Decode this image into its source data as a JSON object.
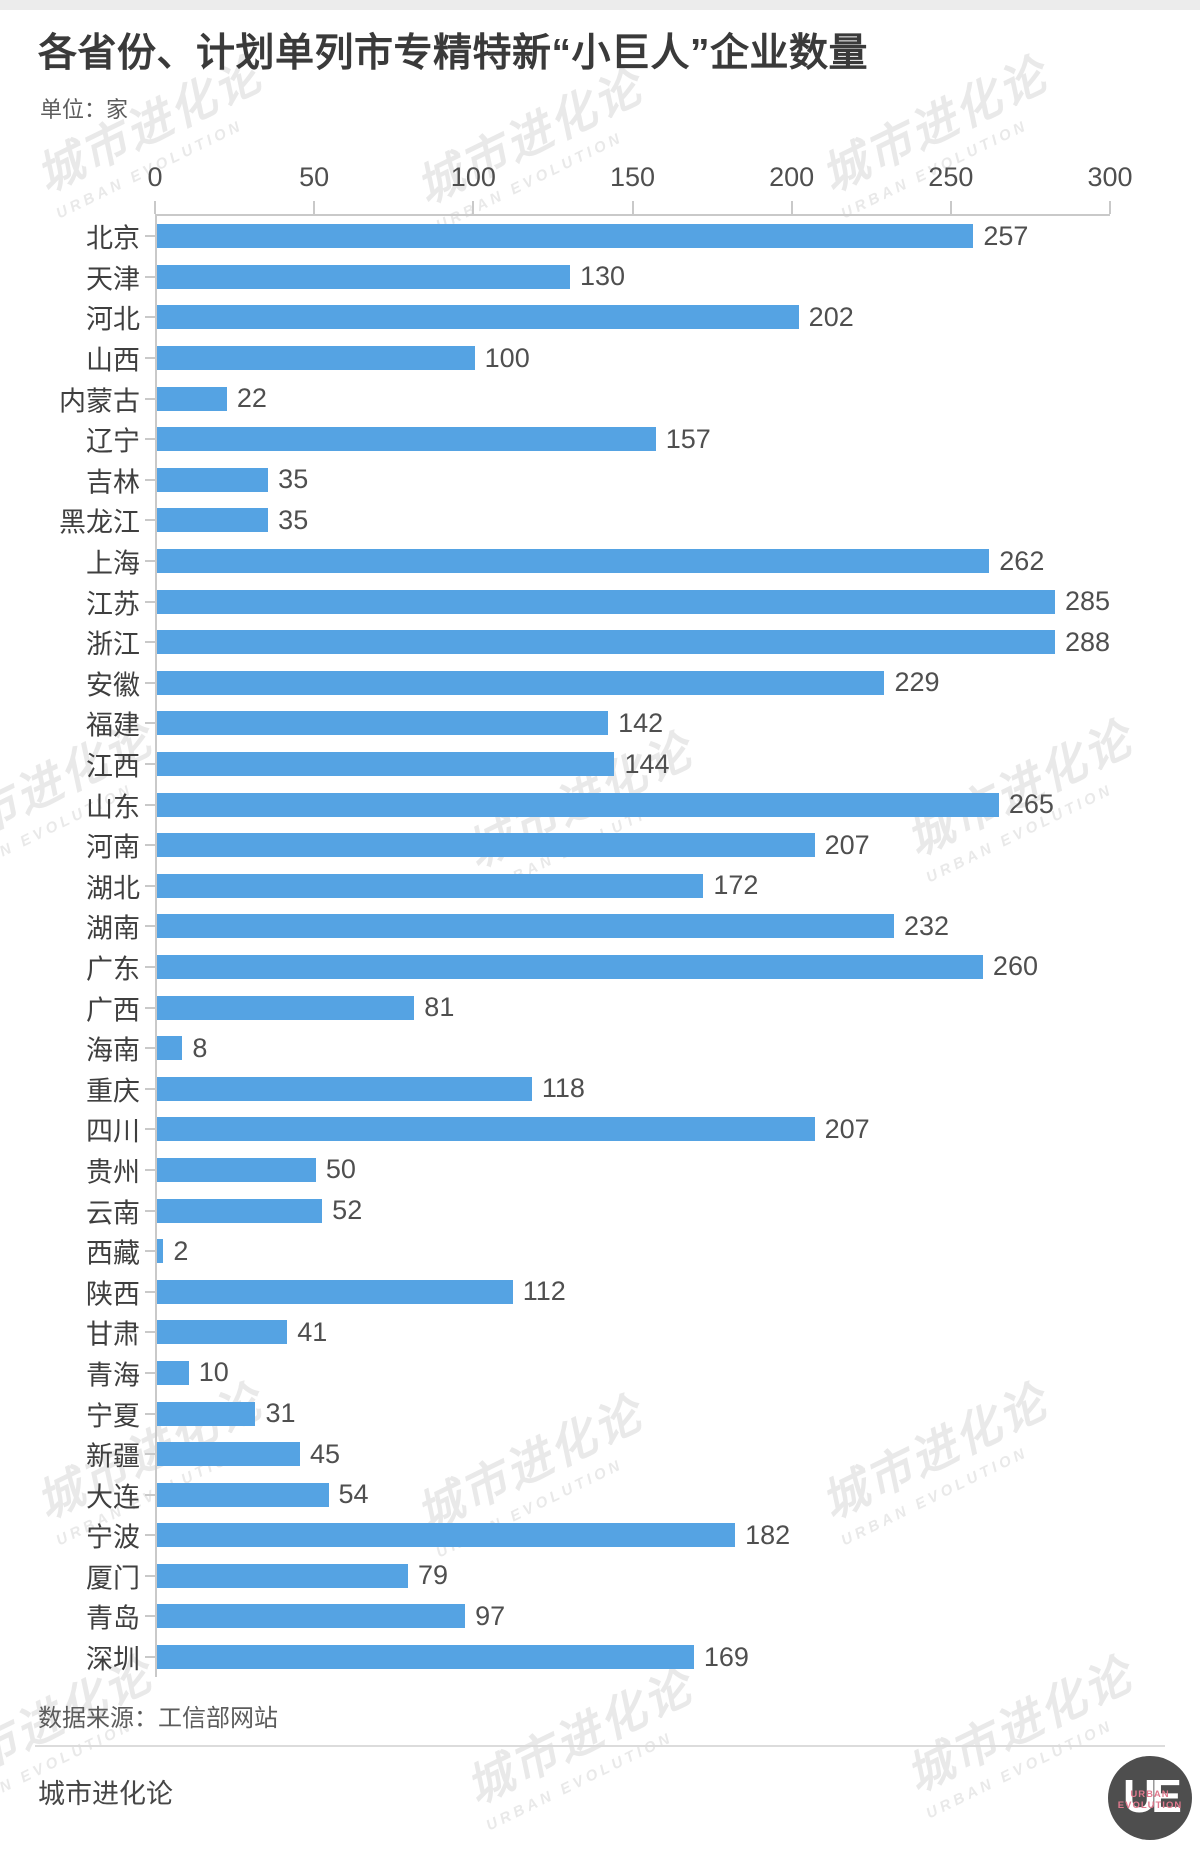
{
  "page": {
    "title": "各省份、计划单列市专精特新“小巨人”企业数量",
    "unit_label": "单位：家",
    "source_label": "数据来源：工信部网站",
    "brand_label": "城市进化论"
  },
  "watermark": {
    "cn": "城市进化论",
    "en": "URBAN EVOLUTION"
  },
  "logo": {
    "initials": "UE",
    "line1": "URBAN",
    "line2": "EVOLUTION"
  },
  "colors": {
    "bar": "#55a3e3",
    "axis_line": "#c9c9c9",
    "title_text": "#3a3a3a",
    "body_text": "#4f4f4f",
    "watermark_text": "#e9e9e9",
    "logo_bg": "#4e4e4e",
    "logo_accent": "#e0798e"
  },
  "chart_data": {
    "type": "bar",
    "orientation": "horizontal",
    "title": "各省份、计划单列市专精特新“小巨人”企业数量",
    "unit": "家",
    "xlim": [
      0,
      300
    ],
    "x_ticks": [
      0,
      50,
      100,
      150,
      200,
      250,
      300
    ],
    "grid": false,
    "legend": "none",
    "categories": [
      "北京",
      "天津",
      "河北",
      "山西",
      "内蒙古",
      "辽宁",
      "吉林",
      "黑龙江",
      "上海",
      "江苏",
      "浙江",
      "安徽",
      "福建",
      "江西",
      "山东",
      "河南",
      "湖北",
      "湖南",
      "广东",
      "广西",
      "海南",
      "重庆",
      "四川",
      "贵州",
      "云南",
      "西藏",
      "陕西",
      "甘肃",
      "青海",
      "宁夏",
      "新疆",
      "大连",
      "宁波",
      "厦门",
      "青岛",
      "深圳"
    ],
    "values": [
      257,
      130,
      202,
      100,
      22,
      157,
      35,
      35,
      262,
      285,
      288,
      229,
      142,
      144,
      265,
      207,
      172,
      232,
      260,
      81,
      8,
      118,
      207,
      50,
      52,
      2,
      112,
      41,
      10,
      31,
      45,
      54,
      182,
      79,
      97,
      169
    ]
  }
}
